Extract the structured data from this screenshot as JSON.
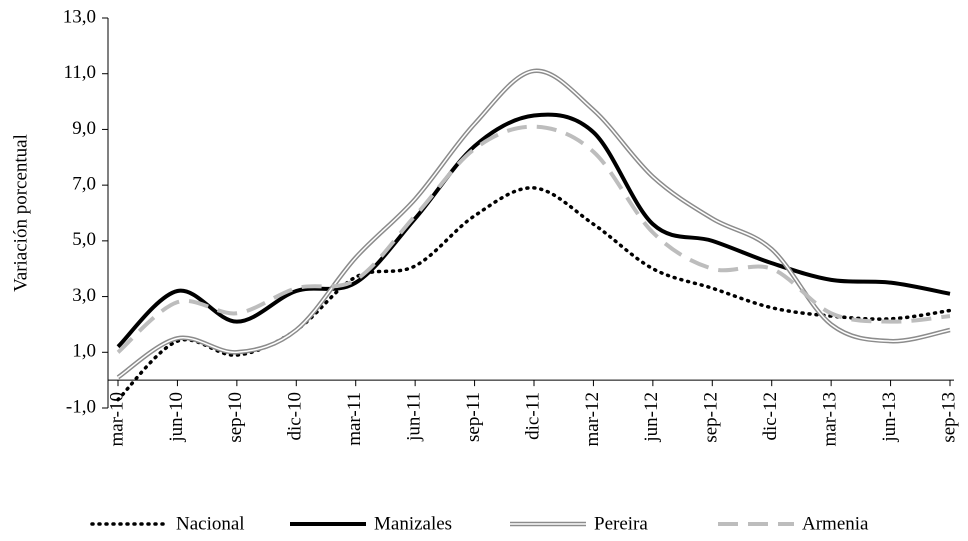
{
  "chart_data": {
    "type": "line",
    "y_label": "Variación porcentual",
    "categories": [
      "mar-10",
      "jun-10",
      "sep-10",
      "dic-10",
      "mar-11",
      "jun-11",
      "sep-11",
      "dic-11",
      "mar-12",
      "jun-12",
      "sep-12",
      "dic-12",
      "mar-13",
      "jun-13",
      "sep-13"
    ],
    "ylim": [
      -1,
      13
    ],
    "yticks": [
      {
        "value": -1,
        "label": "-1,0"
      },
      {
        "value": 1,
        "label": "1,0"
      },
      {
        "value": 3,
        "label": "3,0"
      },
      {
        "value": 5,
        "label": "5,0"
      },
      {
        "value": 7,
        "label": "7,0"
      },
      {
        "value": 9,
        "label": "9,0"
      },
      {
        "value": 11,
        "label": "11,0"
      },
      {
        "value": 13,
        "label": "13,0"
      }
    ],
    "smooth": true,
    "legend": "bottom",
    "series": [
      {
        "name": "Nacional",
        "color": "#000000",
        "style": "dotted",
        "values": [
          -0.7,
          1.4,
          0.9,
          1.8,
          3.7,
          4.1,
          5.9,
          6.9,
          5.6,
          4.0,
          3.3,
          2.6,
          2.3,
          2.2,
          2.5
        ]
      },
      {
        "name": "Manizales",
        "color": "#000000",
        "style": "solid",
        "values": [
          1.2,
          3.2,
          2.1,
          3.2,
          3.5,
          5.8,
          8.4,
          9.5,
          8.9,
          5.6,
          5.0,
          4.2,
          3.6,
          3.5,
          3.1
        ]
      },
      {
        "name": "Pereira",
        "color": "#8c8c8c",
        "style": "double",
        "values": [
          0.1,
          1.5,
          1.0,
          1.8,
          4.4,
          6.5,
          9.2,
          11.1,
          9.7,
          7.3,
          5.8,
          4.7,
          2.0,
          1.4,
          1.8
        ]
      },
      {
        "name": "Armenia",
        "color": "#bdbdbd",
        "style": "dashed",
        "values": [
          1.0,
          2.8,
          2.4,
          3.3,
          3.6,
          5.9,
          8.3,
          9.1,
          8.2,
          5.3,
          4.0,
          4.0,
          2.4,
          2.1,
          2.3
        ]
      }
    ]
  }
}
